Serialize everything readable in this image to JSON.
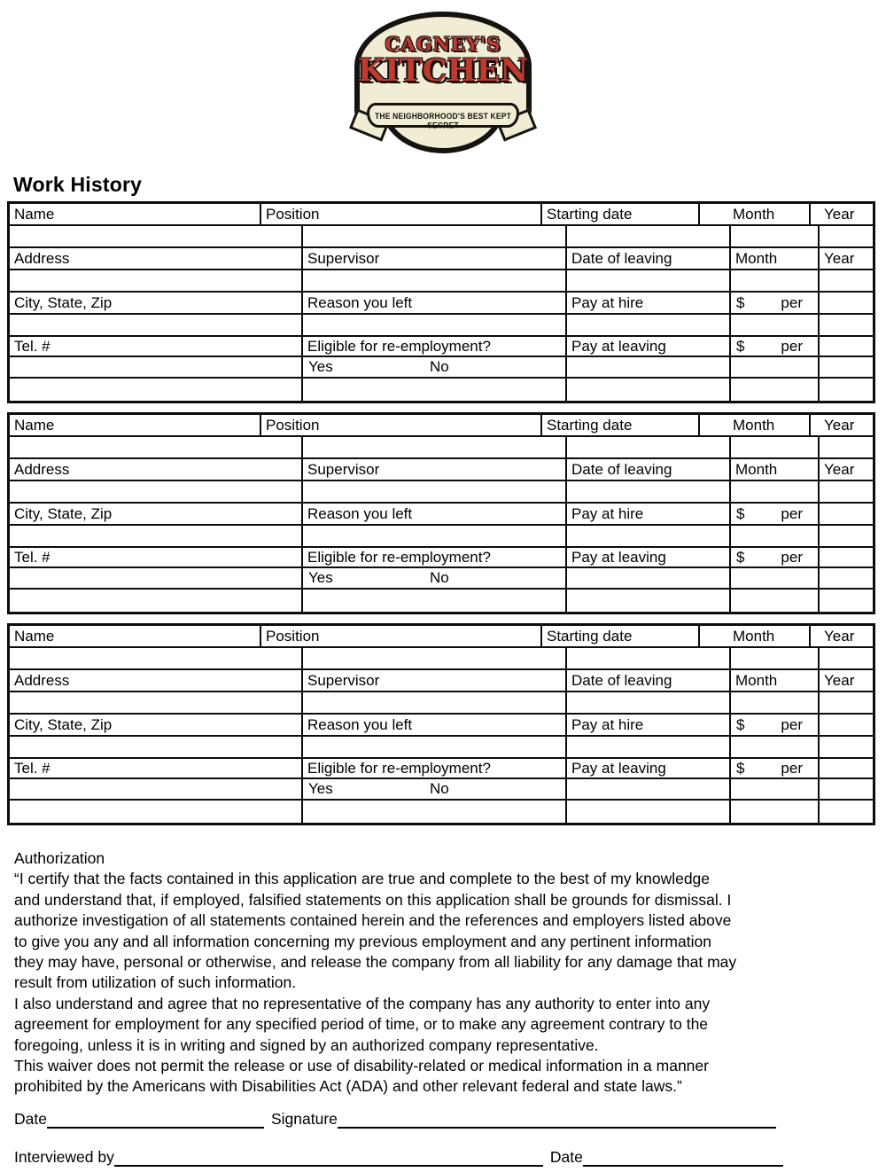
{
  "logo": {
    "line1": "CAGNEY'S",
    "line2": "KITCHEN",
    "tagline": "THE NEIGHBORHOOD'S BEST KEPT SECRET",
    "colors": {
      "red": "#c03a30",
      "cream": "#f1ecd4",
      "black": "#151210"
    }
  },
  "title": "Work History",
  "work_history": {
    "blocks": [
      {
        "row1": {
          "c1": "Name",
          "c2": "Position",
          "c3": "Starting date",
          "c4": "Month",
          "c5": "Year"
        },
        "row3": {
          "c1": "Address",
          "c2": "Supervisor",
          "c3": "Date of leaving",
          "c4": "Month",
          "c5": "Year"
        },
        "row5": {
          "c1": "City, State, Zip",
          "c2": "Reason you left",
          "c3": "Pay at hire",
          "c4_dollar": "$",
          "c4_per": "per"
        },
        "row7": {
          "c1": "Tel. #",
          "c2": "Eligible for re-employment?",
          "c3": "Pay at leaving",
          "c4_dollar": "$",
          "c4_per": "per"
        },
        "row8": {
          "yes": "Yes",
          "no": "No"
        }
      },
      {
        "row1": {
          "c1": "Name",
          "c2": "Position",
          "c3": "Starting date",
          "c4": "Month",
          "c5": "Year"
        },
        "row3": {
          "c1": "Address",
          "c2": "Supervisor",
          "c3": "Date of leaving",
          "c4": "Month",
          "c5": "Year"
        },
        "row5": {
          "c1": "City, State, Zip",
          "c2": "Reason you left",
          "c3": "Pay at hire",
          "c4_dollar": "$",
          "c4_per": "per"
        },
        "row7": {
          "c1": "Tel. #",
          "c2": "Eligible for re-employment?",
          "c3": "Pay at leaving",
          "c4_dollar": "$",
          "c4_per": "per"
        },
        "row8": {
          "yes": "Yes",
          "no": "No"
        }
      },
      {
        "row1": {
          "c1": "Name",
          "c2": "Position",
          "c3": "Starting date",
          "c4": "Month",
          "c5": "Year"
        },
        "row3": {
          "c1": "Address",
          "c2": "Supervisor",
          "c3": "Date of leaving",
          "c4": "Month",
          "c5": "Year"
        },
        "row5": {
          "c1": "City, State, Zip",
          "c2": "Reason you left",
          "c3": "Pay at hire",
          "c4_dollar": "$",
          "c4_per": "per"
        },
        "row7": {
          "c1": "Tel. #",
          "c2": "Eligible for re-employment?",
          "c3": "Pay at leaving",
          "c4_dollar": "$",
          "c4_per": "per"
        },
        "row8": {
          "yes": "Yes",
          "no": "No"
        }
      }
    ]
  },
  "authorization": {
    "heading": "Authorization",
    "lines": [
      "“I certify that the facts contained in this application are true and complete to the best of my knowledge",
      "and understand that, if employed, falsified statements on this application shall be grounds for dismissal. I",
      "authorize investigation of all statements contained herein and the references and employers listed above",
      "to give you any and all information concerning my previous employment and any pertinent information",
      "they may have, personal or otherwise, and release the company from all liability for any damage that may",
      "result from utilization of such information.",
      "I also understand and agree that no representative of the company has any authority to enter into any",
      "agreement for employment for any specified period of time, or to make any agreement contrary to the",
      "foregoing, unless it is in writing and signed by an authorized company representative.",
      "This waiver does not permit the release or use of disability-related or medical information in a manner",
      "prohibited by the Americans with Disabilities Act (ADA) and other relevant federal and state laws.”"
    ]
  },
  "signature_section": {
    "date_label": "Date",
    "signature_label": "Signature",
    "interviewed_by_label": "Interviewed by",
    "interview_date_label": "Date"
  }
}
